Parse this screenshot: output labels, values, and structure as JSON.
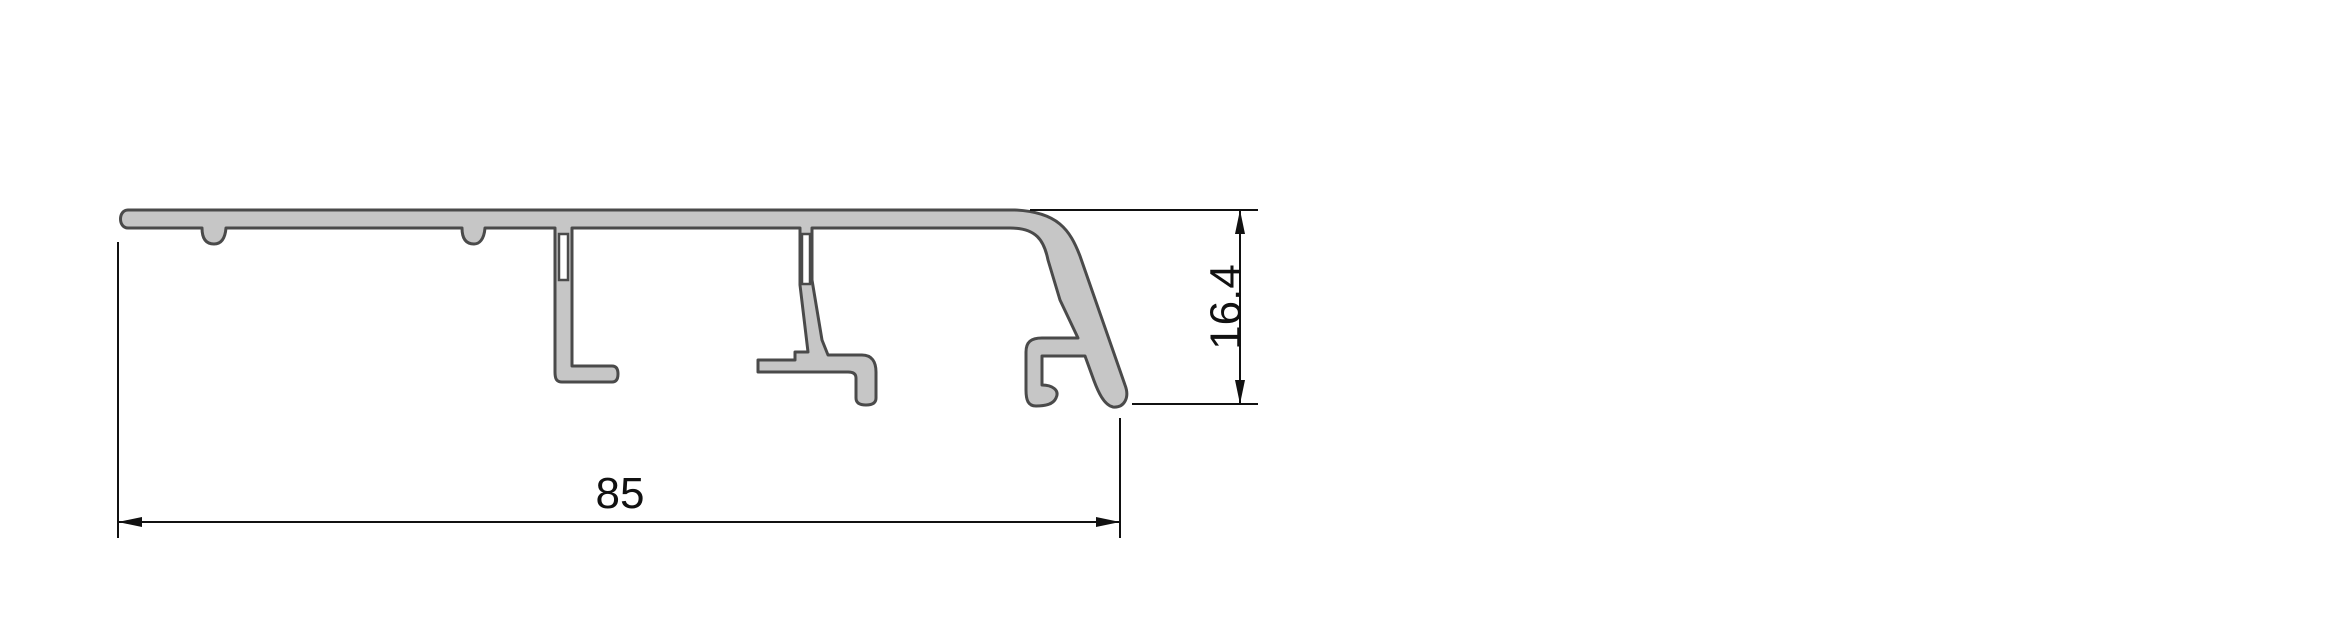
{
  "drawing": {
    "dimensions": [
      {
        "id": "width",
        "label": "85"
      },
      {
        "id": "height",
        "label": "16.4"
      }
    ],
    "colors": {
      "profile_fill": "#c6c6c6",
      "profile_stroke": "#4a4a4a",
      "dimension_line": "#111111",
      "background": "#ffffff"
    }
  }
}
